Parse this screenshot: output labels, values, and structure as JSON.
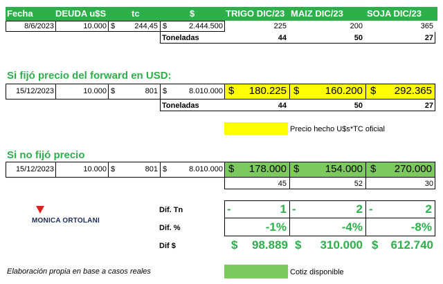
{
  "header": {
    "fecha": "Fecha",
    "deuda": "DEUDA u$S",
    "tc": "tc",
    "pesos": "$",
    "trigo": "TRIGO DIC/23",
    "maiz": "MAIZ DIC/23",
    "soja": "SOJA DIC/23"
  },
  "row1": {
    "fecha": "8/6/2023",
    "deuda": "10.000",
    "cur1": "$",
    "tc": "244,45",
    "cur2": "$",
    "pesos": "2.444.500",
    "trigo": "225",
    "maiz": "200",
    "soja": "365"
  },
  "tons1": {
    "label": "Toneladas",
    "trigo": "44",
    "maiz": "50",
    "soja": "27"
  },
  "section_forward": {
    "title": "Si fijó precio del forward en USD:"
  },
  "row2": {
    "fecha": "15/12/2023",
    "deuda": "10.000",
    "cur1": "$",
    "tc": "801",
    "cur2": "$",
    "pesos": "8.010.000",
    "cur_trigo": "$",
    "trigo": "180.225",
    "cur_maiz": "$",
    "maiz": "160.200",
    "cur_soja": "$",
    "soja": "292.365"
  },
  "tons2": {
    "label": "Toneladas",
    "trigo": "44",
    "maiz": "50",
    "soja": "27"
  },
  "legend_yellow": {
    "text": "Precio hecho U$s*TC oficial",
    "color": "#ffff00"
  },
  "section_nofijo": {
    "title": "Si no fijó precio"
  },
  "row3": {
    "fecha": "15/12/2023",
    "deuda": "10.000",
    "cur1": "$",
    "tc": "801",
    "cur2": "$",
    "pesos": "8.010.000",
    "cur_trigo": "$",
    "trigo": "178.000",
    "cur_maiz": "$",
    "maiz": "154.000",
    "cur_soja": "$",
    "soja": "270.000"
  },
  "tons3": {
    "trigo": "45",
    "maiz": "52",
    "soja": "30"
  },
  "logo": {
    "text": "MONICA ORTOLANI",
    "color": "#e02020"
  },
  "dif_tn": {
    "label": "Dif. Tn",
    "dash": "-",
    "trigo": "1",
    "maiz": "2",
    "soja": "2"
  },
  "dif_pct": {
    "label": "Dif. %",
    "trigo": "-1%",
    "maiz": "-4%",
    "soja": "-8%"
  },
  "dif_pesos": {
    "label": "Dif $",
    "cur": "$",
    "trigo": "98.889",
    "maiz": "310.000",
    "soja": "612.740"
  },
  "footer": {
    "text": "Elaboración propia en base a casos reales"
  },
  "legend_green": {
    "text": "Cotiz disponible",
    "color": "#7cc95e"
  },
  "colors": {
    "header_green": "#2db04a",
    "section_green": "#2db04a"
  }
}
